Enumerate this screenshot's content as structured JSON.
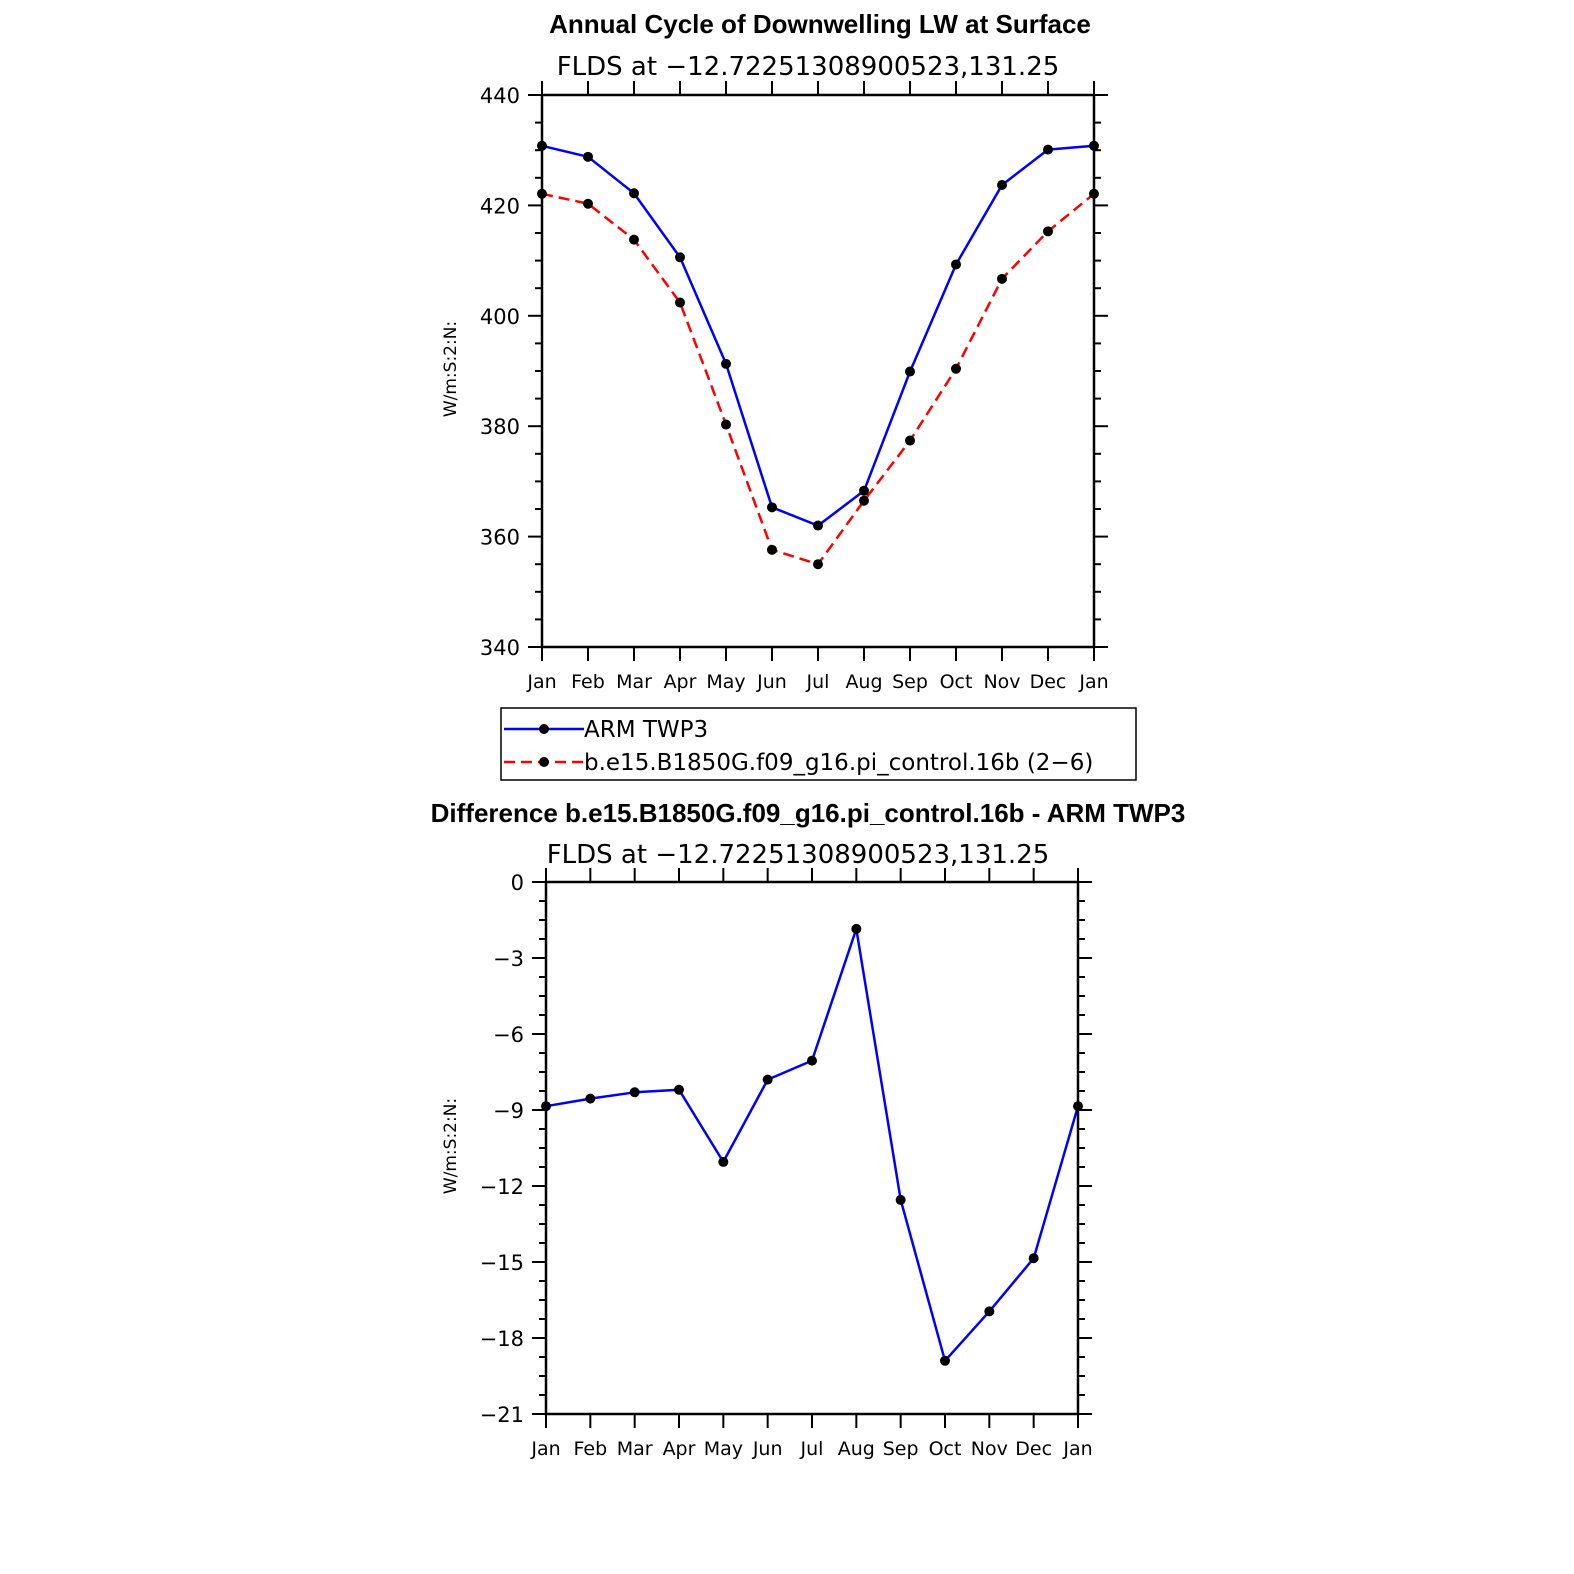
{
  "chart_data": [
    {
      "type": "line",
      "title": "Annual Cycle of Downwelling LW at Surface",
      "subtitle": "FLDS at −12.72251308900523,131.25",
      "ylabel": "W/m:S:2:N:",
      "xlabel": "",
      "ylim": [
        340,
        440
      ],
      "yticks": [
        340,
        360,
        380,
        400,
        420,
        440
      ],
      "ytick_labels": [
        "340",
        "360",
        "380",
        "400",
        "420",
        "440"
      ],
      "categories": [
        "Jan",
        "Feb",
        "Mar",
        "Apr",
        "May",
        "Jun",
        "Jul",
        "Aug",
        "Sep",
        "Oct",
        "Nov",
        "Dec",
        "Jan"
      ],
      "series": [
        {
          "name": "ARM TWP3",
          "color": "#0000ff",
          "dash": "solid",
          "values": [
            430.8,
            428.8,
            422.2,
            410.6,
            391.3,
            365.3,
            362.0,
            368.3,
            389.9,
            409.3,
            423.7,
            430.1,
            430.8
          ]
        },
        {
          "name": "b.e15.B1850G.f09_g16.pi_control.16b (2−6)",
          "color": "#ff0000",
          "dash": "dashed",
          "values": [
            422.1,
            420.3,
            413.8,
            402.4,
            380.3,
            357.6,
            355.0,
            366.5,
            377.4,
            390.4,
            406.7,
            415.3,
            422.1
          ]
        }
      ],
      "legend": "below"
    },
    {
      "type": "line",
      "title": "Difference b.e15.B1850G.f09_g16.pi_control.16b - ARM TWP3",
      "subtitle": "FLDS at −12.72251308900523,131.25",
      "ylabel": "W/m:S:2:N:",
      "xlabel": "",
      "ylim": [
        -21,
        0
      ],
      "yticks": [
        0,
        -3,
        -6,
        -9,
        -12,
        -15,
        -18,
        -21
      ],
      "ytick_labels": [
        "0",
        "−3",
        "−6",
        "−9",
        "−12",
        "−15",
        "−18",
        "−21"
      ],
      "categories": [
        "Jan",
        "Feb",
        "Mar",
        "Apr",
        "May",
        "Jun",
        "Jul",
        "Aug",
        "Sep",
        "Oct",
        "Nov",
        "Dec",
        "Jan"
      ],
      "series": [
        {
          "name": "Difference",
          "color": "#0000ff",
          "dash": "solid",
          "values": [
            -8.85,
            -8.55,
            -8.3,
            -8.2,
            -11.05,
            -7.8,
            -7.05,
            -1.85,
            -12.55,
            -18.9,
            -16.95,
            -14.85,
            -8.85
          ]
        }
      ]
    }
  ]
}
